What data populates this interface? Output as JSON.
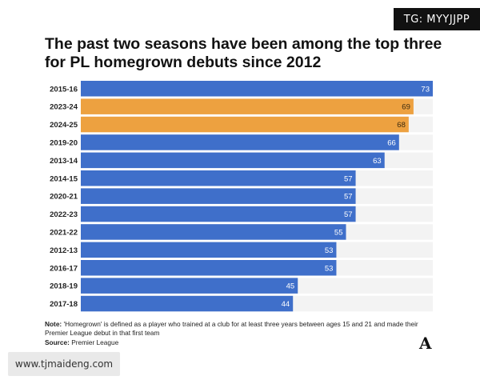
{
  "watermark_top": "TG: MYYJJPP",
  "watermark_bottom": "www.tjmaideng.com",
  "title_lines": [
    "The past two seasons have been among the top three",
    "for PL homegrown debuts since 2012"
  ],
  "note_label": "Note:",
  "note_text": "'Homegrown' is defined as a player who trained at a club for at least three years between ages 15 and 21 and made their Premier League debut in that first team",
  "source_label": "Source:",
  "source_text": "Premier League",
  "logo": "A",
  "colors": {
    "default_bar": "#3f6fca",
    "highlight_bar": "#eda140",
    "track": "#f3f3f3"
  },
  "chart_data": {
    "type": "bar",
    "orientation": "horizontal",
    "categories": [
      "2015-16",
      "2023-24",
      "2024-25",
      "2019-20",
      "2013-14",
      "2014-15",
      "2020-21",
      "2022-23",
      "2021-22",
      "2012-13",
      "2016-17",
      "2018-19",
      "2017-18"
    ],
    "values": [
      73,
      69,
      68,
      66,
      63,
      57,
      57,
      57,
      55,
      53,
      53,
      45,
      44
    ],
    "highlighted": [
      "2023-24",
      "2024-25"
    ],
    "xlim": [
      0,
      73
    ],
    "grid": false,
    "legend": "none",
    "title": "The past two seasons have been among the top three for PL homegrown debuts since 2012"
  }
}
